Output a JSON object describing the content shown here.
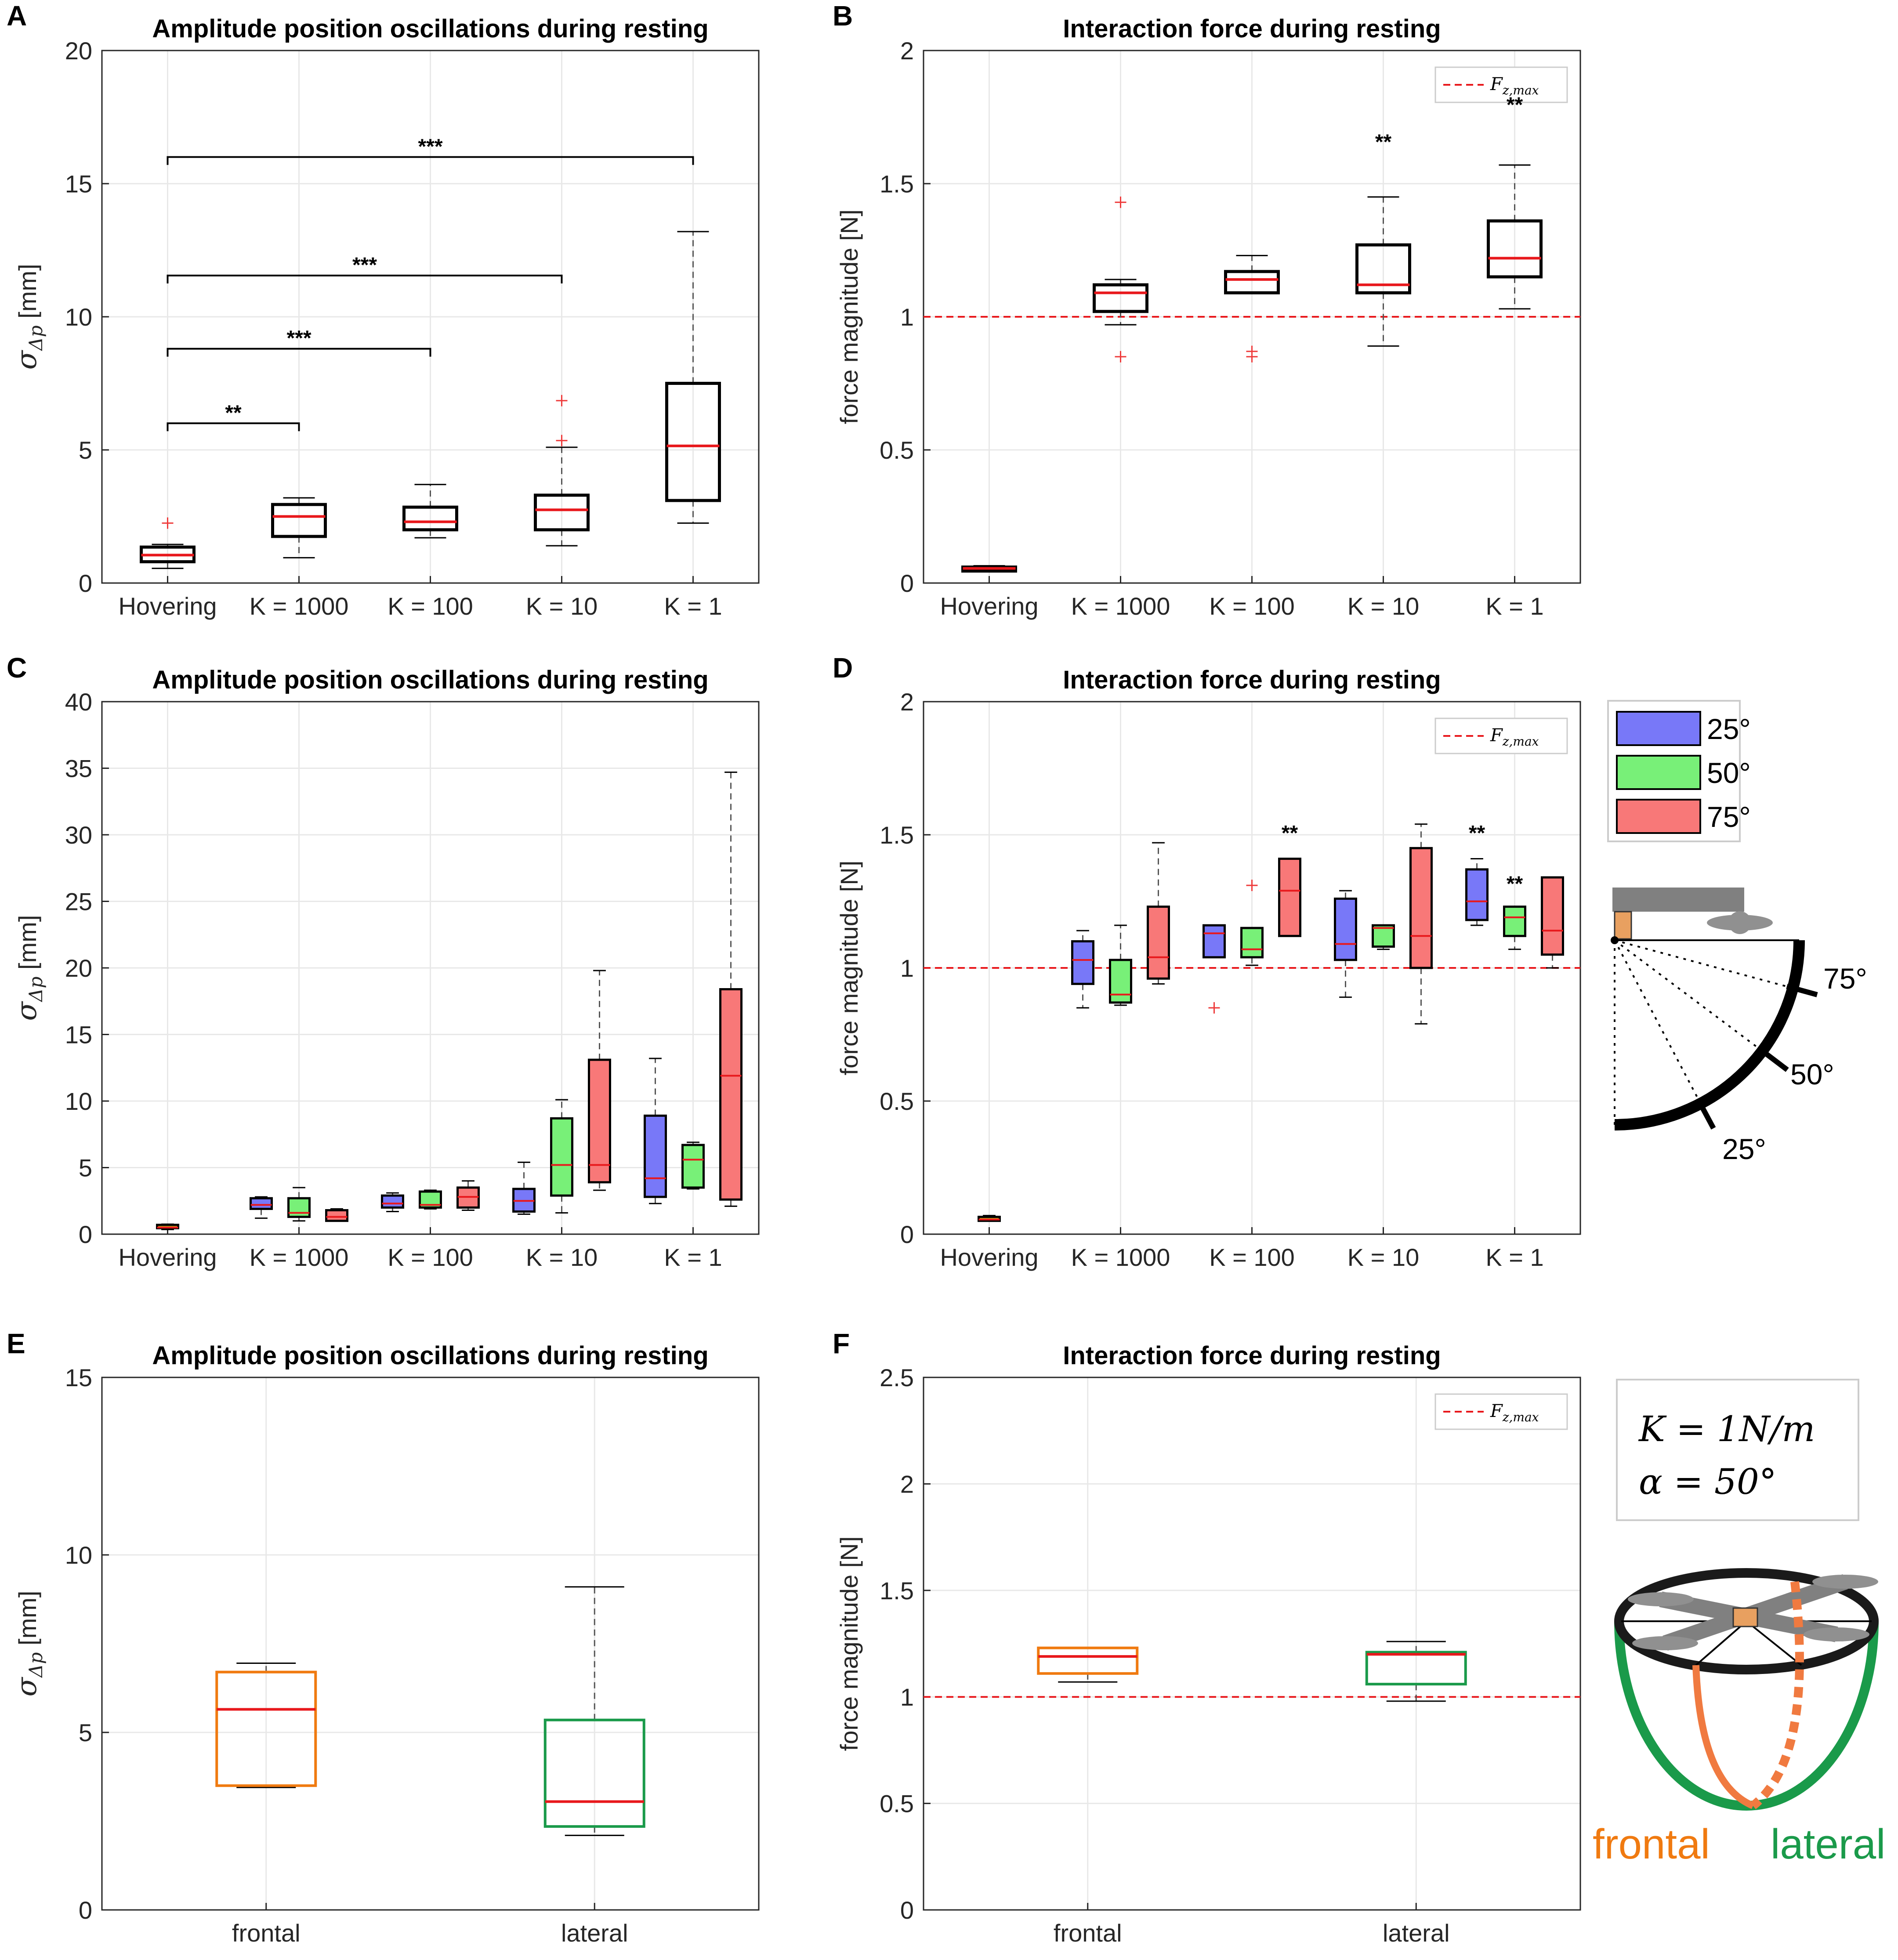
{
  "colors": {
    "box": "#000000",
    "median": "#e8181c",
    "outlier": "#ee3b3b",
    "whisker": "#555555",
    "grid": "#e8e8e8",
    "ref": "#e8181c",
    "angle25": "#7878f8",
    "angle50": "#78f078",
    "angle75": "#f87878",
    "frontal": "#f07a10",
    "lateral": "#1a9a4a",
    "hover_fill": "#c8a818"
  },
  "legend": {
    "ref_label": "F_{z,max}",
    "ref_label_main": "F",
    "ref_label_sub": "z,max",
    "angles": [
      "25°",
      "50°",
      "75°"
    ]
  },
  "side_panel_D": {
    "labels": [
      "75°",
      "50°",
      "25°"
    ]
  },
  "side_panel_F": {
    "eq1_main": "K = 1N/m",
    "eq2_main": "α = 50°",
    "frontal_label": "frontal",
    "lateral_label": "lateral"
  },
  "chart_data": [
    {
      "panel": "A",
      "type": "box",
      "title": "Amplitude position oscillations during resting",
      "xlabel": "",
      "ylabel_main": "σ",
      "ylabel_sub": "Δp",
      "ylabel_unit": " [mm]",
      "ylim": [
        0,
        20
      ],
      "yticks": [
        0,
        5,
        10,
        15,
        20
      ],
      "categories": [
        "Hovering",
        "K = 1000",
        "K = 100",
        "K = 10",
        "K = 1"
      ],
      "boxes": [
        {
          "cat": 0,
          "min": 0.55,
          "q1": 0.8,
          "median": 1.05,
          "q3": 1.35,
          "max": 1.45,
          "outliers": [
            2.25
          ]
        },
        {
          "cat": 1,
          "min": 0.95,
          "q1": 1.75,
          "median": 2.5,
          "q3": 2.95,
          "max": 3.2,
          "outliers": []
        },
        {
          "cat": 2,
          "min": 1.7,
          "q1": 2.0,
          "median": 2.3,
          "q3": 2.85,
          "max": 3.7,
          "outliers": []
        },
        {
          "cat": 3,
          "min": 1.4,
          "q1": 2.0,
          "median": 2.75,
          "q3": 3.3,
          "max": 5.1,
          "outliers": [
            5.35,
            6.85
          ]
        },
        {
          "cat": 4,
          "min": 2.25,
          "q1": 3.1,
          "median": 5.15,
          "q3": 7.5,
          "max": 13.2,
          "outliers": []
        }
      ],
      "significance": [
        {
          "from": 0,
          "to": 1,
          "y": 6.0,
          "label": "**"
        },
        {
          "from": 0,
          "to": 2,
          "y": 8.8,
          "label": "***"
        },
        {
          "from": 0,
          "to": 3,
          "y": 11.55,
          "label": "***"
        },
        {
          "from": 0,
          "to": 4,
          "y": 16.0,
          "label": "***"
        }
      ]
    },
    {
      "panel": "B",
      "type": "box",
      "title": "Interaction force during resting",
      "xlabel": "",
      "ylabel": "force magnitude [N]",
      "ylim": [
        0,
        2
      ],
      "yticks": [
        0,
        0.5,
        1,
        1.5,
        2
      ],
      "categories": [
        "Hovering",
        "K = 1000",
        "K = 100",
        "K = 10",
        "K = 1"
      ],
      "reference": 1.0,
      "boxes": [
        {
          "cat": 0,
          "min": 0.045,
          "q1": 0.045,
          "median": 0.055,
          "q3": 0.06,
          "max": 0.065,
          "outliers": []
        },
        {
          "cat": 1,
          "min": 0.97,
          "q1": 1.02,
          "median": 1.09,
          "q3": 1.12,
          "max": 1.14,
          "outliers": [
            0.85,
            1.43
          ]
        },
        {
          "cat": 2,
          "min": 1.09,
          "q1": 1.09,
          "median": 1.14,
          "q3": 1.17,
          "max": 1.23,
          "outliers": [
            0.85,
            0.87
          ]
        },
        {
          "cat": 3,
          "min": 0.89,
          "q1": 1.09,
          "median": 1.12,
          "q3": 1.27,
          "max": 1.45,
          "outliers": []
        },
        {
          "cat": 4,
          "min": 1.03,
          "q1": 1.15,
          "median": 1.22,
          "q3": 1.36,
          "max": 1.57,
          "outliers": []
        }
      ],
      "stars": [
        {
          "cat": 3,
          "y": 1.63,
          "label": "**"
        },
        {
          "cat": 4,
          "y": 1.77,
          "label": "**"
        }
      ]
    },
    {
      "panel": "C",
      "type": "box",
      "title": "Amplitude position oscillations during resting",
      "xlabel": "",
      "ylabel_main": "σ",
      "ylabel_sub": "Δp",
      "ylabel_unit": " [mm]",
      "ylim": [
        0,
        40
      ],
      "yticks": [
        0,
        5,
        10,
        15,
        20,
        25,
        30,
        35,
        40
      ],
      "categories": [
        "Hovering",
        "K = 1000",
        "K = 100",
        "K = 10",
        "K = 1"
      ],
      "series": [
        {
          "name": "25°",
          "color_key": "angle25"
        },
        {
          "name": "50°",
          "color_key": "angle50"
        },
        {
          "name": "75°",
          "color_key": "angle75"
        }
      ],
      "boxes": [
        {
          "cat": 0,
          "series": -1,
          "min": 0.35,
          "q1": 0.45,
          "median": 0.5,
          "q3": 0.7,
          "max": 0.75,
          "outliers": []
        },
        {
          "cat": 1,
          "series": 0,
          "min": 1.2,
          "q1": 1.9,
          "median": 2.2,
          "q3": 2.7,
          "max": 2.8,
          "outliers": []
        },
        {
          "cat": 1,
          "series": 1,
          "min": 1.0,
          "q1": 1.3,
          "median": 1.6,
          "q3": 2.7,
          "max": 3.5,
          "outliers": []
        },
        {
          "cat": 1,
          "series": 2,
          "min": 1.0,
          "q1": 1.0,
          "median": 1.3,
          "q3": 1.8,
          "max": 1.9,
          "outliers": []
        },
        {
          "cat": 2,
          "series": 0,
          "min": 1.7,
          "q1": 2.0,
          "median": 2.3,
          "q3": 2.9,
          "max": 3.1,
          "outliers": []
        },
        {
          "cat": 2,
          "series": 1,
          "min": 1.9,
          "q1": 2.0,
          "median": 2.2,
          "q3": 3.2,
          "max": 3.3,
          "outliers": []
        },
        {
          "cat": 2,
          "series": 2,
          "min": 1.8,
          "q1": 2.0,
          "median": 2.8,
          "q3": 3.5,
          "max": 4.0,
          "outliers": []
        },
        {
          "cat": 3,
          "series": 0,
          "min": 1.5,
          "q1": 1.7,
          "median": 2.5,
          "q3": 3.4,
          "max": 5.4,
          "outliers": []
        },
        {
          "cat": 3,
          "series": 1,
          "min": 1.6,
          "q1": 2.9,
          "median": 5.2,
          "q3": 8.7,
          "max": 10.1,
          "outliers": []
        },
        {
          "cat": 3,
          "series": 2,
          "min": 3.3,
          "q1": 3.9,
          "median": 5.2,
          "q3": 13.1,
          "max": 19.8,
          "outliers": []
        },
        {
          "cat": 4,
          "series": 0,
          "min": 2.3,
          "q1": 2.8,
          "median": 4.2,
          "q3": 8.9,
          "max": 13.2,
          "outliers": []
        },
        {
          "cat": 4,
          "series": 1,
          "min": 3.4,
          "q1": 3.5,
          "median": 5.6,
          "q3": 6.7,
          "max": 6.9,
          "outliers": []
        },
        {
          "cat": 4,
          "series": 2,
          "min": 2.1,
          "q1": 2.6,
          "median": 11.9,
          "q3": 18.4,
          "max": 34.7,
          "outliers": []
        }
      ]
    },
    {
      "panel": "D",
      "type": "box",
      "title": "Interaction force during resting",
      "xlabel": "",
      "ylabel": "force magnitude [N]",
      "ylim": [
        0,
        2
      ],
      "yticks": [
        0,
        0.5,
        1,
        1.5,
        2
      ],
      "categories": [
        "Hovering",
        "K = 1000",
        "K = 100",
        "K = 10",
        "K = 1"
      ],
      "reference": 1.0,
      "series": [
        {
          "name": "25°",
          "color_key": "angle25"
        },
        {
          "name": "50°",
          "color_key": "angle50"
        },
        {
          "name": "75°",
          "color_key": "angle75"
        }
      ],
      "boxes": [
        {
          "cat": 0,
          "series": -1,
          "min": 0.05,
          "q1": 0.05,
          "median": 0.055,
          "q3": 0.065,
          "max": 0.07,
          "outliers": []
        },
        {
          "cat": 1,
          "series": 0,
          "min": 0.85,
          "q1": 0.94,
          "median": 1.03,
          "q3": 1.1,
          "max": 1.14,
          "outliers": []
        },
        {
          "cat": 1,
          "series": 1,
          "min": 0.86,
          "q1": 0.87,
          "median": 0.9,
          "q3": 1.03,
          "max": 1.16,
          "outliers": []
        },
        {
          "cat": 1,
          "series": 2,
          "min": 0.94,
          "q1": 0.96,
          "median": 1.04,
          "q3": 1.23,
          "max": 1.47,
          "outliers": []
        },
        {
          "cat": 2,
          "series": 0,
          "min": 1.04,
          "q1": 1.04,
          "median": 1.13,
          "q3": 1.16,
          "max": 1.16,
          "outliers": [
            0.85
          ]
        },
        {
          "cat": 2,
          "series": 1,
          "min": 1.01,
          "q1": 1.04,
          "median": 1.07,
          "q3": 1.15,
          "max": 1.15,
          "outliers": [
            1.31
          ]
        },
        {
          "cat": 2,
          "series": 2,
          "min": 1.12,
          "q1": 1.12,
          "median": 1.29,
          "q3": 1.41,
          "max": 1.41,
          "outliers": []
        },
        {
          "cat": 3,
          "series": 0,
          "min": 0.89,
          "q1": 1.03,
          "median": 1.09,
          "q3": 1.26,
          "max": 1.29,
          "outliers": []
        },
        {
          "cat": 3,
          "series": 1,
          "min": 1.07,
          "q1": 1.08,
          "median": 1.15,
          "q3": 1.16,
          "max": 1.16,
          "outliers": []
        },
        {
          "cat": 3,
          "series": 2,
          "min": 0.79,
          "q1": 1.0,
          "median": 1.12,
          "q3": 1.45,
          "max": 1.54,
          "outliers": []
        },
        {
          "cat": 4,
          "series": 0,
          "min": 1.16,
          "q1": 1.18,
          "median": 1.25,
          "q3": 1.37,
          "max": 1.41,
          "outliers": []
        },
        {
          "cat": 4,
          "series": 1,
          "min": 1.07,
          "q1": 1.12,
          "median": 1.19,
          "q3": 1.23,
          "max": 1.23,
          "outliers": []
        },
        {
          "cat": 4,
          "series": 2,
          "min": 1.0,
          "q1": 1.05,
          "median": 1.14,
          "q3": 1.34,
          "max": 1.34,
          "outliers": []
        }
      ],
      "stars": [
        {
          "cat": 2,
          "series": 2,
          "y": 1.48,
          "label": "**"
        },
        {
          "cat": 4,
          "series": 0,
          "y": 1.48,
          "label": "**"
        },
        {
          "cat": 4,
          "series": 1,
          "y": 1.29,
          "label": "**"
        }
      ]
    },
    {
      "panel": "E",
      "type": "box",
      "title": "Amplitude position oscillations during resting",
      "xlabel": "",
      "ylabel_main": "σ",
      "ylabel_sub": "Δp",
      "ylabel_unit": " [mm]",
      "ylim": [
        0,
        15
      ],
      "yticks": [
        0,
        5,
        10,
        15
      ],
      "categories": [
        "frontal",
        "lateral"
      ],
      "boxes": [
        {
          "cat": 0,
          "color_key": "frontal",
          "min": 3.45,
          "q1": 3.5,
          "median": 5.65,
          "q3": 6.7,
          "max": 6.95,
          "outliers": []
        },
        {
          "cat": 1,
          "color_key": "lateral",
          "min": 2.1,
          "q1": 2.35,
          "median": 3.05,
          "q3": 5.35,
          "max": 9.1,
          "outliers": []
        }
      ]
    },
    {
      "panel": "F",
      "type": "box",
      "title": "Interaction force during resting",
      "xlabel": "",
      "ylabel": "force magnitude [N]",
      "ylim": [
        0,
        2.5
      ],
      "yticks": [
        0,
        0.5,
        1,
        1.5,
        2,
        2.5
      ],
      "categories": [
        "frontal",
        "lateral"
      ],
      "reference": 1.0,
      "boxes": [
        {
          "cat": 0,
          "color_key": "frontal",
          "min": 1.07,
          "q1": 1.11,
          "median": 1.19,
          "q3": 1.23,
          "max": 1.23,
          "outliers": []
        },
        {
          "cat": 1,
          "color_key": "lateral",
          "min": 0.98,
          "q1": 1.06,
          "median": 1.2,
          "q3": 1.21,
          "max": 1.26,
          "outliers": []
        }
      ]
    }
  ]
}
